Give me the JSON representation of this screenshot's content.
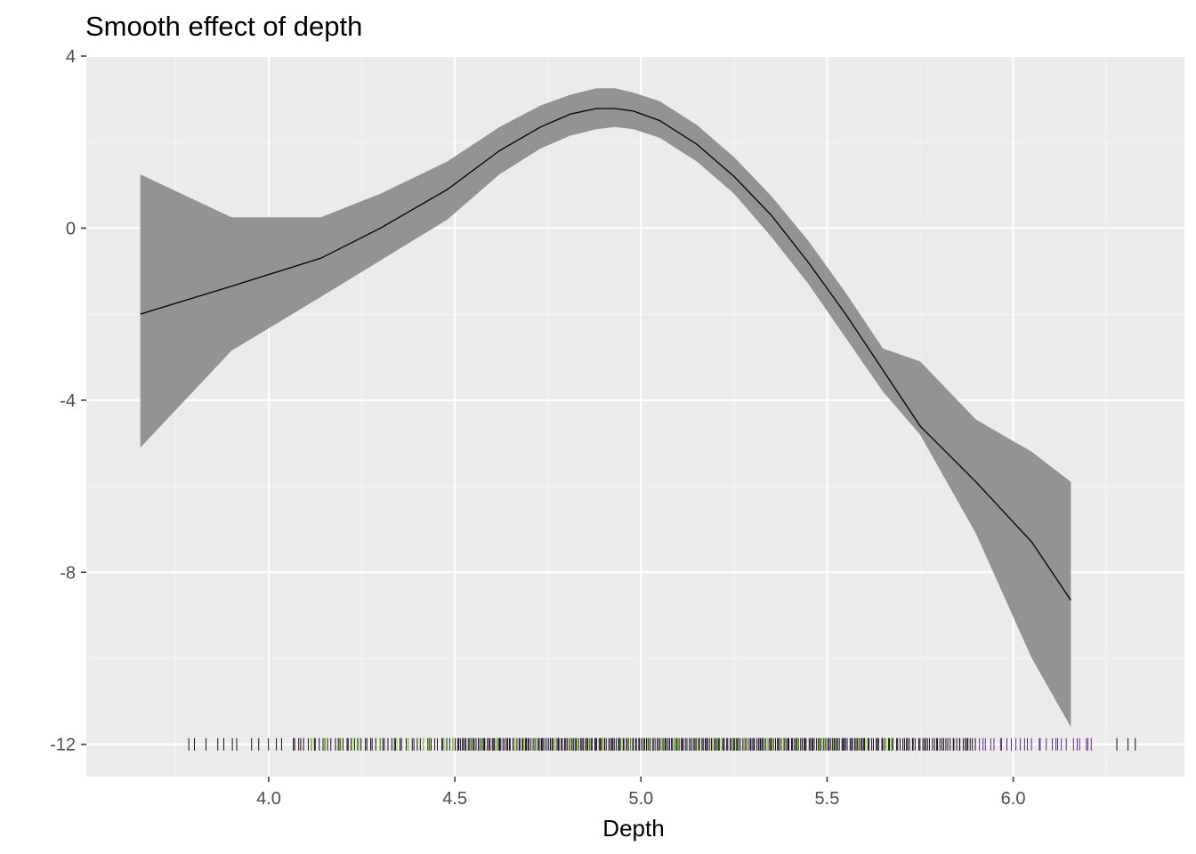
{
  "chart_data": {
    "type": "line",
    "title": "Smooth effect of depth",
    "xlabel": "Depth",
    "ylabel": "",
    "xlim": [
      3.51,
      6.46
    ],
    "ylim": [
      -12.75,
      4.0
    ],
    "x_ticks": [
      4.0,
      4.5,
      5.0,
      5.5,
      6.0
    ],
    "x_tick_labels": [
      "4.0",
      "4.5",
      "5.0",
      "5.5",
      "6.0"
    ],
    "y_ticks": [
      4,
      0,
      -4,
      -8,
      -12
    ],
    "y_tick_labels": [
      "4",
      "0",
      "-4",
      "-8",
      "-12"
    ],
    "grid": true,
    "colors": {
      "panel_background": "#EBEBEB",
      "grid_major": "#FFFFFF",
      "grid_minor": "#F5F5F5",
      "ribbon_fill": "#939393",
      "line": "#000000",
      "rug_dark": "#1A0A1E",
      "rug_green": "#7CFC00",
      "rug_purple": "#5B2A86"
    },
    "series": [
      {
        "x": [
          3.655,
          3.9,
          4.14,
          4.3,
          4.48,
          4.62,
          4.73,
          4.81,
          4.88,
          4.93,
          4.98,
          5.05,
          5.15,
          5.25,
          5.35,
          5.45,
          5.55,
          5.65,
          5.75,
          5.9,
          6.05,
          6.155
        ],
        "y": [
          -2.0,
          -1.35,
          -0.7,
          0.0,
          0.9,
          1.8,
          2.35,
          2.65,
          2.78,
          2.78,
          2.72,
          2.5,
          1.95,
          1.2,
          0.3,
          -0.8,
          -2.0,
          -3.3,
          -4.6,
          -5.9,
          -7.3,
          -8.65
        ]
      }
    ],
    "confidence_band": {
      "x": [
        3.655,
        3.9,
        4.14,
        4.3,
        4.48,
        4.62,
        4.73,
        4.81,
        4.88,
        4.93,
        4.98,
        5.05,
        5.15,
        5.25,
        5.35,
        5.45,
        5.55,
        5.65,
        5.75,
        5.9,
        6.05,
        6.155
      ],
      "upper": [
        1.25,
        0.25,
        0.25,
        0.8,
        1.55,
        2.35,
        2.85,
        3.1,
        3.25,
        3.25,
        3.15,
        2.95,
        2.4,
        1.65,
        0.75,
        -0.3,
        -1.5,
        -2.8,
        -3.1,
        -4.45,
        -5.2,
        -5.9
      ],
      "lower": [
        -5.1,
        -2.85,
        -1.6,
        -0.75,
        0.2,
        1.25,
        1.85,
        2.15,
        2.3,
        2.35,
        2.3,
        2.1,
        1.55,
        0.8,
        -0.2,
        -1.3,
        -2.55,
        -3.8,
        -4.8,
        -7.1,
        -10.0,
        -11.6
      ]
    },
    "rug": {
      "y": -12,
      "ranges": [
        {
          "from": 3.77,
          "to": 4.05,
          "count": 12,
          "color": "dark"
        },
        {
          "from": 4.06,
          "to": 4.5,
          "count": 55,
          "color": "dark"
        },
        {
          "from": 4.5,
          "to": 5.6,
          "count": 260,
          "color": "dark"
        },
        {
          "from": 5.6,
          "to": 5.9,
          "count": 55,
          "color": "dark"
        },
        {
          "from": 5.9,
          "to": 6.22,
          "count": 28,
          "color": "purple"
        },
        {
          "from": 6.27,
          "to": 6.34,
          "count": 3,
          "color": "dark"
        },
        {
          "from": 4.1,
          "to": 5.7,
          "count": 45,
          "color": "green"
        }
      ]
    }
  }
}
